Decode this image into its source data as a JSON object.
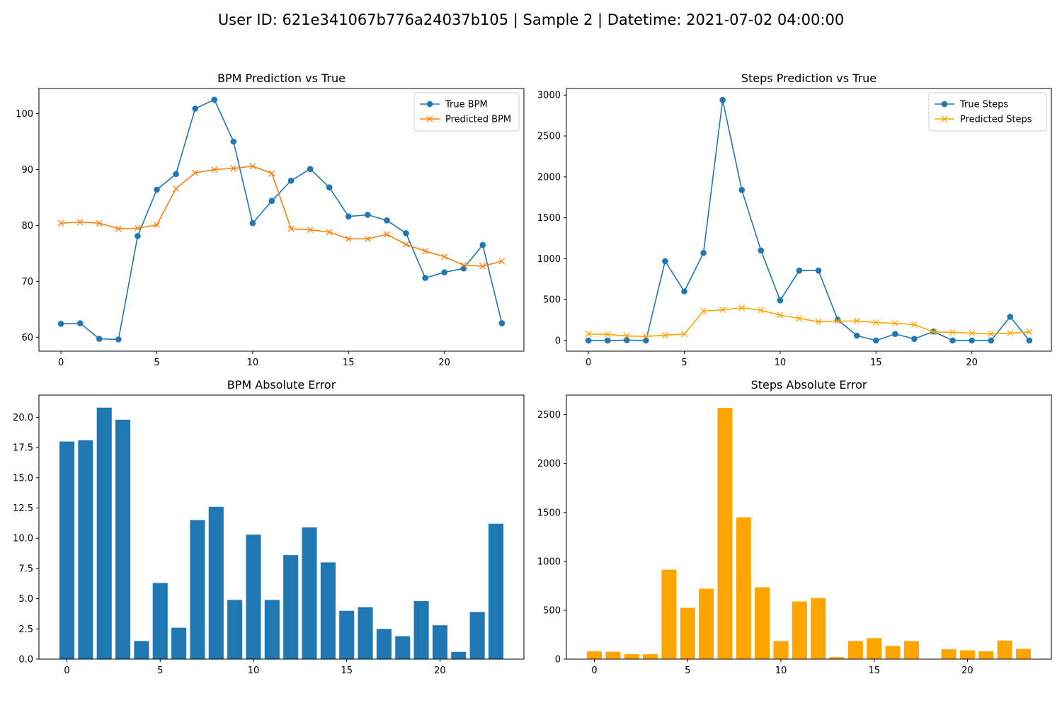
{
  "figure": {
    "title": "User ID: 621e341067b776a24037b105 | Sample 2 | Datetime: 2021-07-02 04:00:00"
  },
  "chart_data": [
    {
      "id": "bpm_line",
      "type": "line",
      "title": "BPM Prediction vs True",
      "xlabel": "",
      "ylabel": "",
      "x": [
        0,
        1,
        2,
        3,
        4,
        5,
        6,
        7,
        8,
        9,
        10,
        11,
        12,
        13,
        14,
        15,
        16,
        17,
        18,
        19,
        20,
        21,
        22,
        23
      ],
      "xlim": [
        -1.15,
        24.15
      ],
      "ylim": [
        57.5,
        104.5
      ],
      "xticks": [
        0,
        5,
        10,
        15,
        20
      ],
      "yticks": [
        60,
        70,
        80,
        90,
        100
      ],
      "grid": false,
      "legend_position": "top-right",
      "series": [
        {
          "name": "True BPM",
          "color": "#1f77b4",
          "marker": "circle",
          "values": [
            62.4,
            62.5,
            59.7,
            59.6,
            78.1,
            86.4,
            89.2,
            100.9,
            102.5,
            95.0,
            80.4,
            84.4,
            88.0,
            90.1,
            86.8,
            81.6,
            81.9,
            80.9,
            78.6,
            70.6,
            71.6,
            72.3,
            76.5,
            62.5
          ]
        },
        {
          "name": "Predicted BPM",
          "color": "#ff7f0e",
          "marker": "x",
          "values": [
            80.4,
            80.6,
            80.4,
            79.4,
            79.5,
            80.1,
            86.6,
            89.4,
            90.0,
            90.2,
            90.6,
            89.3,
            79.4,
            79.2,
            78.8,
            77.6,
            77.6,
            78.4,
            76.6,
            75.4,
            74.4,
            72.9,
            72.7,
            73.6
          ]
        }
      ]
    },
    {
      "id": "steps_line",
      "type": "line",
      "title": "Steps Prediction vs True",
      "xlabel": "",
      "ylabel": "",
      "x": [
        0,
        1,
        2,
        3,
        4,
        5,
        6,
        7,
        8,
        9,
        10,
        11,
        12,
        13,
        14,
        15,
        16,
        17,
        18,
        19,
        20,
        21,
        22,
        23
      ],
      "xlim": [
        -1.15,
        24.15
      ],
      "ylim": [
        -130,
        3080
      ],
      "xticks": [
        0,
        5,
        10,
        15,
        20
      ],
      "yticks": [
        0,
        500,
        1000,
        1500,
        2000,
        2500,
        3000
      ],
      "grid": false,
      "legend_position": "top-right",
      "series": [
        {
          "name": "True Steps",
          "color": "#1f77b4",
          "marker": "circle",
          "values": [
            0,
            0,
            5,
            0,
            970,
            600,
            1070,
            2940,
            1840,
            1100,
            490,
            855,
            855,
            255,
            60,
            0,
            80,
            20,
            110,
            0,
            0,
            0,
            290,
            0
          ]
        },
        {
          "name": "Predicted Steps",
          "color": "#ffa500",
          "marker": "x",
          "values": [
            80,
            75,
            55,
            50,
            65,
            80,
            360,
            375,
            400,
            370,
            310,
            270,
            230,
            235,
            240,
            220,
            210,
            195,
            105,
            100,
            90,
            80,
            90,
            105
          ]
        }
      ]
    },
    {
      "id": "bpm_error",
      "type": "bar",
      "title": "BPM Absolute Error",
      "xlabel": "",
      "ylabel": "",
      "categories": [
        0,
        1,
        2,
        3,
        4,
        5,
        6,
        7,
        8,
        9,
        10,
        11,
        12,
        13,
        14,
        15,
        16,
        17,
        18,
        19,
        20,
        21,
        22,
        23
      ],
      "values": [
        18.0,
        18.1,
        20.8,
        19.8,
        1.5,
        6.3,
        2.6,
        11.5,
        12.6,
        4.9,
        10.3,
        4.9,
        8.6,
        10.9,
        8.0,
        4.0,
        4.3,
        2.5,
        1.9,
        4.8,
        2.8,
        0.6,
        3.9,
        11.2
      ],
      "color": "#1f77b4",
      "xlim": [
        -1.5,
        24.5
      ],
      "ylim": [
        0,
        21.84
      ],
      "xticks": [
        0,
        5,
        10,
        15,
        20
      ],
      "yticks": [
        "0.0",
        "2.5",
        "5.0",
        "7.5",
        "10.0",
        "12.5",
        "15.0",
        "17.5",
        "20.0"
      ],
      "grid": false
    },
    {
      "id": "steps_error",
      "type": "bar",
      "title": "Steps Absolute Error",
      "xlabel": "",
      "ylabel": "",
      "categories": [
        0,
        1,
        2,
        3,
        4,
        5,
        6,
        7,
        8,
        9,
        10,
        11,
        12,
        13,
        14,
        15,
        16,
        17,
        18,
        19,
        20,
        21,
        22,
        23
      ],
      "values": [
        80,
        75,
        50,
        50,
        915,
        525,
        720,
        2570,
        1450,
        735,
        185,
        590,
        625,
        20,
        185,
        215,
        135,
        185,
        0,
        100,
        90,
        80,
        190,
        105
      ],
      "color": "#ffa500",
      "xlim": [
        -1.5,
        24.5
      ],
      "ylim": [
        0,
        2700
      ],
      "xticks": [
        0,
        5,
        10,
        15,
        20
      ],
      "yticks": [
        "0",
        "500",
        "1000",
        "1500",
        "2000",
        "2500"
      ],
      "grid": false
    }
  ]
}
